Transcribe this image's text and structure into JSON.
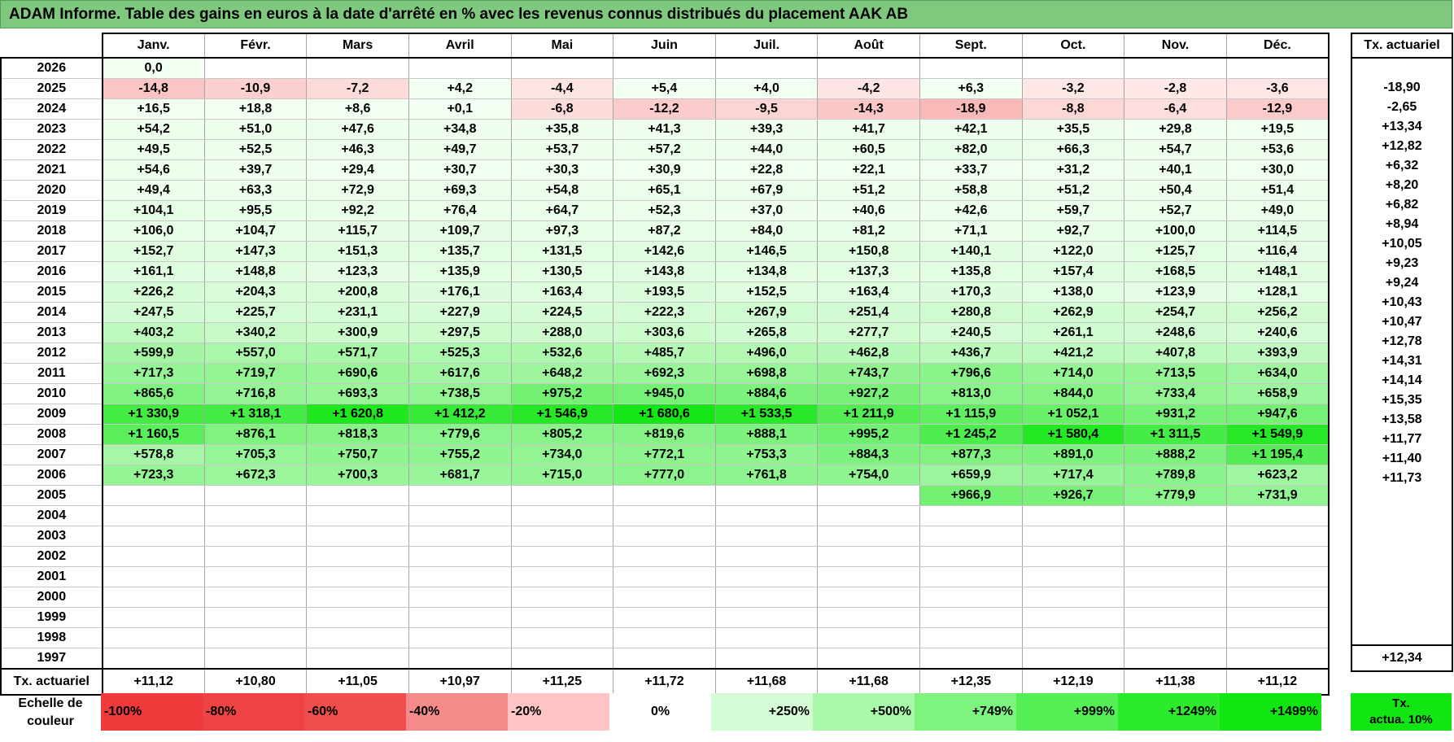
{
  "title": "ADAM Informe. Table des gains en euros à la date d'arrêté en % avec les revenus connus distribués du placement AAK AB",
  "months": [
    "Janv.",
    "Févr.",
    "Mars",
    "Avril",
    "Mai",
    "Juin",
    "Juil.",
    "Août",
    "Sept.",
    "Oct.",
    "Nov.",
    "Déc."
  ],
  "side_header": "Tx. actuariel",
  "rows": [
    {
      "year": "2026",
      "cells": [
        "0,0",
        "",
        "",
        "",
        "",
        "",
        "",
        "",
        "",
        "",
        "",
        ""
      ],
      "rate": ""
    },
    {
      "year": "2025",
      "cells": [
        "-14,8",
        "-10,9",
        "-7,2",
        "+4,2",
        "-4,4",
        "+5,4",
        "+4,0",
        "-4,2",
        "+6,3",
        "-3,2",
        "-2,8",
        "-3,6"
      ],
      "rate": "-18,90"
    },
    {
      "year": "2024",
      "cells": [
        "+16,5",
        "+18,8",
        "+8,6",
        "+0,1",
        "-6,8",
        "-12,2",
        "-9,5",
        "-14,3",
        "-18,9",
        "-8,8",
        "-6,4",
        "-12,9"
      ],
      "rate": "-2,65"
    },
    {
      "year": "2023",
      "cells": [
        "+54,2",
        "+51,0",
        "+47,6",
        "+34,8",
        "+35,8",
        "+41,3",
        "+39,3",
        "+41,7",
        "+42,1",
        "+35,5",
        "+29,8",
        "+19,5"
      ],
      "rate": "+13,34"
    },
    {
      "year": "2022",
      "cells": [
        "+49,5",
        "+52,5",
        "+46,3",
        "+49,7",
        "+53,7",
        "+57,2",
        "+44,0",
        "+60,5",
        "+82,0",
        "+66,3",
        "+54,7",
        "+53,6"
      ],
      "rate": "+12,82"
    },
    {
      "year": "2021",
      "cells": [
        "+54,6",
        "+39,7",
        "+29,4",
        "+30,7",
        "+30,3",
        "+30,9",
        "+22,8",
        "+22,1",
        "+33,7",
        "+31,2",
        "+40,1",
        "+30,0"
      ],
      "rate": "+6,32"
    },
    {
      "year": "2020",
      "cells": [
        "+49,4",
        "+63,3",
        "+72,9",
        "+69,3",
        "+54,8",
        "+65,1",
        "+67,9",
        "+51,2",
        "+58,8",
        "+51,2",
        "+50,4",
        "+51,4"
      ],
      "rate": "+8,20"
    },
    {
      "year": "2019",
      "cells": [
        "+104,1",
        "+95,5",
        "+92,2",
        "+76,4",
        "+64,7",
        "+52,3",
        "+37,0",
        "+40,6",
        "+42,6",
        "+59,7",
        "+52,7",
        "+49,0"
      ],
      "rate": "+6,82"
    },
    {
      "year": "2018",
      "cells": [
        "+106,0",
        "+104,7",
        "+115,7",
        "+109,7",
        "+97,3",
        "+87,2",
        "+84,0",
        "+81,2",
        "+71,1",
        "+92,7",
        "+100,0",
        "+114,5"
      ],
      "rate": "+8,94"
    },
    {
      "year": "2017",
      "cells": [
        "+152,7",
        "+147,3",
        "+151,3",
        "+135,7",
        "+131,5",
        "+142,6",
        "+146,5",
        "+150,8",
        "+140,1",
        "+122,0",
        "+125,7",
        "+116,4"
      ],
      "rate": "+10,05"
    },
    {
      "year": "2016",
      "cells": [
        "+161,1",
        "+148,8",
        "+123,3",
        "+135,9",
        "+130,5",
        "+143,8",
        "+134,8",
        "+137,3",
        "+135,8",
        "+157,4",
        "+168,5",
        "+148,1"
      ],
      "rate": "+9,23"
    },
    {
      "year": "2015",
      "cells": [
        "+226,2",
        "+204,3",
        "+200,8",
        "+176,1",
        "+163,4",
        "+193,5",
        "+152,5",
        "+163,4",
        "+170,3",
        "+138,0",
        "+123,9",
        "+128,1"
      ],
      "rate": "+9,24"
    },
    {
      "year": "2014",
      "cells": [
        "+247,5",
        "+225,7",
        "+231,1",
        "+227,9",
        "+224,5",
        "+222,3",
        "+267,9",
        "+251,4",
        "+280,8",
        "+262,9",
        "+254,7",
        "+256,2"
      ],
      "rate": "+10,43"
    },
    {
      "year": "2013",
      "cells": [
        "+403,2",
        "+340,2",
        "+300,9",
        "+297,5",
        "+288,0",
        "+303,6",
        "+265,8",
        "+277,7",
        "+240,5",
        "+261,1",
        "+248,6",
        "+240,6"
      ],
      "rate": "+10,47"
    },
    {
      "year": "2012",
      "cells": [
        "+599,9",
        "+557,0",
        "+571,7",
        "+525,3",
        "+532,6",
        "+485,7",
        "+496,0",
        "+462,8",
        "+436,7",
        "+421,2",
        "+407,8",
        "+393,9"
      ],
      "rate": "+12,78"
    },
    {
      "year": "2011",
      "cells": [
        "+717,3",
        "+719,7",
        "+690,6",
        "+617,6",
        "+648,2",
        "+692,3",
        "+698,8",
        "+743,7",
        "+796,6",
        "+714,0",
        "+713,5",
        "+634,0"
      ],
      "rate": "+14,31"
    },
    {
      "year": "2010",
      "cells": [
        "+865,6",
        "+716,8",
        "+693,3",
        "+738,5",
        "+975,2",
        "+945,0",
        "+884,6",
        "+927,2",
        "+813,0",
        "+844,0",
        "+733,4",
        "+658,9"
      ],
      "rate": "+14,14"
    },
    {
      "year": "2009",
      "cells": [
        "+1 330,9",
        "+1 318,1",
        "+1 620,8",
        "+1 412,2",
        "+1 546,9",
        "+1 680,6",
        "+1 533,5",
        "+1 211,9",
        "+1 115,9",
        "+1 052,1",
        "+931,2",
        "+947,6"
      ],
      "rate": "+15,35"
    },
    {
      "year": "2008",
      "cells": [
        "+1 160,5",
        "+876,1",
        "+818,3",
        "+779,6",
        "+805,2",
        "+819,6",
        "+888,1",
        "+995,2",
        "+1 245,2",
        "+1 580,4",
        "+1 311,5",
        "+1 549,9"
      ],
      "rate": "+13,58"
    },
    {
      "year": "2007",
      "cells": [
        "+578,8",
        "+705,3",
        "+750,7",
        "+755,2",
        "+734,0",
        "+772,1",
        "+753,3",
        "+884,3",
        "+877,3",
        "+891,0",
        "+888,2",
        "+1 195,4"
      ],
      "rate": "+11,77"
    },
    {
      "year": "2006",
      "cells": [
        "+723,3",
        "+672,3",
        "+700,3",
        "+681,7",
        "+715,0",
        "+777,0",
        "+761,8",
        "+754,0",
        "+659,9",
        "+717,4",
        "+789,8",
        "+623,2"
      ],
      "rate": "+11,40"
    },
    {
      "year": "2005",
      "cells": [
        "",
        "",
        "",
        "",
        "",
        "",
        "",
        "",
        "+966,9",
        "+926,7",
        "+779,9",
        "+731,9"
      ],
      "rate": "+11,73"
    },
    {
      "year": "2004",
      "cells": [
        "",
        "",
        "",
        "",
        "",
        "",
        "",
        "",
        "",
        "",
        "",
        ""
      ],
      "rate": ""
    },
    {
      "year": "2003",
      "cells": [
        "",
        "",
        "",
        "",
        "",
        "",
        "",
        "",
        "",
        "",
        "",
        ""
      ],
      "rate": ""
    },
    {
      "year": "2002",
      "cells": [
        "",
        "",
        "",
        "",
        "",
        "",
        "",
        "",
        "",
        "",
        "",
        ""
      ],
      "rate": ""
    },
    {
      "year": "2001",
      "cells": [
        "",
        "",
        "",
        "",
        "",
        "",
        "",
        "",
        "",
        "",
        "",
        ""
      ],
      "rate": ""
    },
    {
      "year": "2000",
      "cells": [
        "",
        "",
        "",
        "",
        "",
        "",
        "",
        "",
        "",
        "",
        "",
        ""
      ],
      "rate": ""
    },
    {
      "year": "1999",
      "cells": [
        "",
        "",
        "",
        "",
        "",
        "",
        "",
        "",
        "",
        "",
        "",
        ""
      ],
      "rate": ""
    },
    {
      "year": "1998",
      "cells": [
        "",
        "",
        "",
        "",
        "",
        "",
        "",
        "",
        "",
        "",
        "",
        ""
      ],
      "rate": ""
    },
    {
      "year": "1997",
      "cells": [
        "",
        "",
        "",
        "",
        "",
        "",
        "",
        "",
        "",
        "",
        "",
        ""
      ],
      "rate": ""
    }
  ],
  "footer": {
    "label": "Tx. actuariel",
    "cells": [
      "+11,12",
      "+10,80",
      "+11,05",
      "+10,97",
      "+11,25",
      "+11,72",
      "+11,68",
      "+11,68",
      "+12,35",
      "+12,19",
      "+11,38",
      "+11,12"
    ],
    "rate": "+12,34"
  },
  "scale": {
    "label_line1": "Echelle de",
    "label_line2": "couleur",
    "items": [
      {
        "text": "-100%",
        "color": "#ee3a3a",
        "align": "left"
      },
      {
        "text": "-80%",
        "color": "#ef4343",
        "align": "left"
      },
      {
        "text": "-60%",
        "color": "#f04d4d",
        "align": "left"
      },
      {
        "text": "-40%",
        "color": "#f58a8a",
        "align": "left"
      },
      {
        "text": "-20%",
        "color": "#fcc4c4",
        "align": "left"
      },
      {
        "text": "0%",
        "color": "#ffffff",
        "align": "center"
      },
      {
        "text": "+250%",
        "color": "#d4fbd4",
        "align": "right"
      },
      {
        "text": "+500%",
        "color": "#a9f7a9",
        "align": "right"
      },
      {
        "text": "+749%",
        "color": "#7ef37e",
        "align": "right"
      },
      {
        "text": "+999%",
        "color": "#54ef54",
        "align": "right"
      },
      {
        "text": "+1249%",
        "color": "#2beb2b",
        "align": "right"
      },
      {
        "text": "+1499%",
        "color": "#12e612",
        "align": "right"
      }
    ],
    "note_line1": "Tx.",
    "note_line2": "actua. 10%",
    "note_color": "#12e612"
  }
}
